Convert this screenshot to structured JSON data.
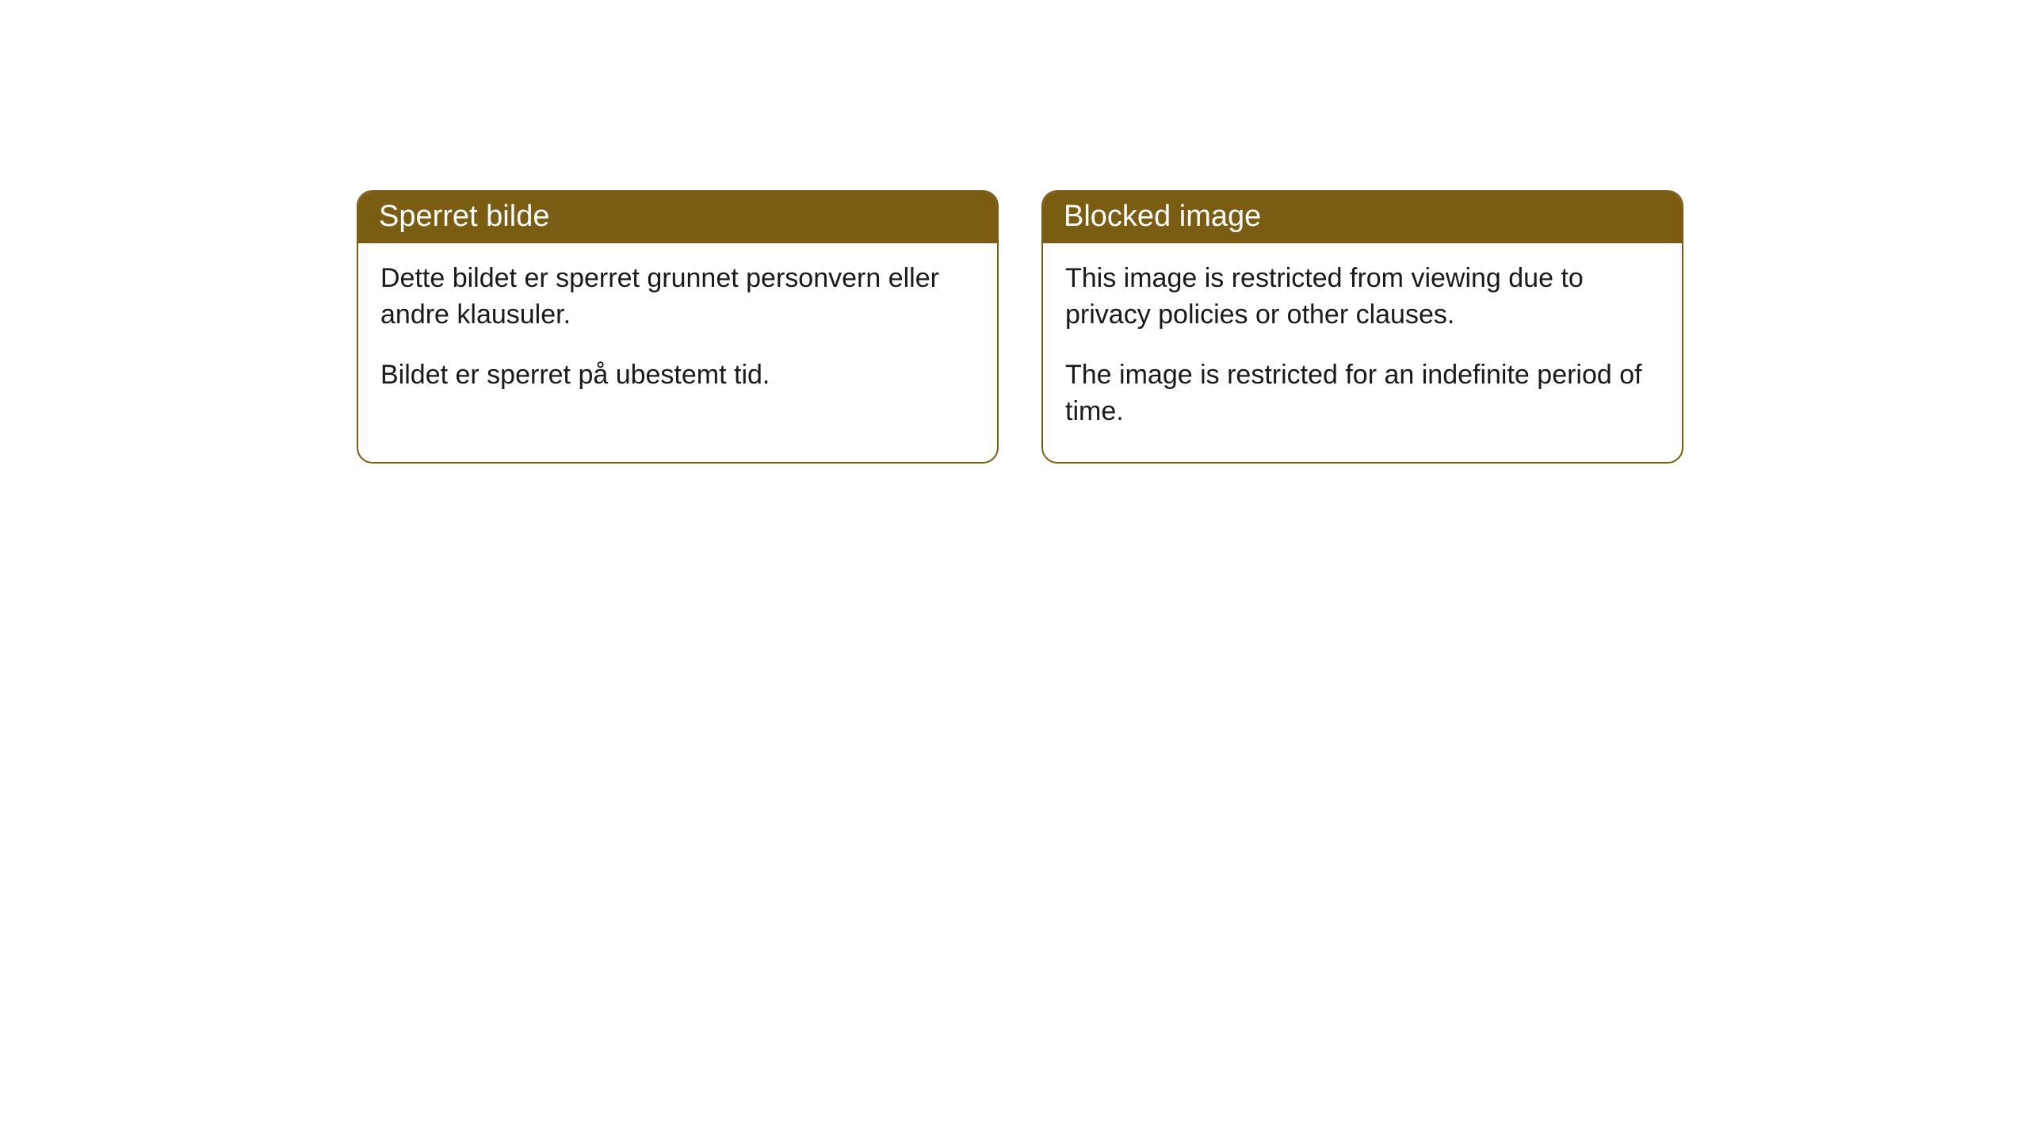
{
  "cards": [
    {
      "title": "Sperret bilde",
      "paragraph1": "Dette bildet er sperret grunnet personvern eller andre klausuler.",
      "paragraph2": "Bildet er sperret på ubestemt tid."
    },
    {
      "title": "Blocked image",
      "paragraph1": "This image is restricted from viewing due to privacy policies or other clauses.",
      "paragraph2": "The image is restricted for an indefinite period of time."
    }
  ],
  "styling": {
    "header_bg_color": "#7a5c12",
    "header_text_color": "#ffffff",
    "border_color": "#7a5c12",
    "body_bg_color": "#ffffff",
    "body_text_color": "#1a1a1a",
    "border_radius": 20,
    "title_fontsize": 38,
    "body_fontsize": 34
  }
}
